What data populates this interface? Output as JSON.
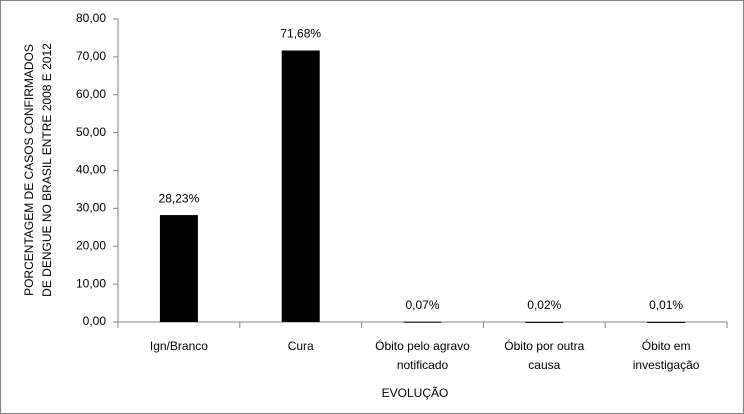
{
  "chart_data": {
    "type": "bar",
    "categories": [
      "Ign/Branco",
      "Cura",
      "Óbito pelo agravo notificado",
      "Óbito por outra causa",
      "Óbito em investigação"
    ],
    "values": [
      28.23,
      71.68,
      0.07,
      0.02,
      0.01
    ],
    "value_labels": [
      "28,23%",
      "71,68%",
      "0,07%",
      "0,02%",
      "0,01%"
    ],
    "color": "#000000",
    "ylim": [
      0,
      80
    ],
    "yticks": [
      {
        "value": 0,
        "label": "0,00"
      },
      {
        "value": 10,
        "label": "10,00"
      },
      {
        "value": 20,
        "label": "20,00"
      },
      {
        "value": 30,
        "label": "30,00"
      },
      {
        "value": 40,
        "label": "40,00"
      },
      {
        "value": 50,
        "label": "50,00"
      },
      {
        "value": 60,
        "label": "60,00"
      },
      {
        "value": 70,
        "label": "70,00"
      },
      {
        "value": 80,
        "label": "80,00"
      }
    ],
    "xlabel": "EVOLUÇÃO",
    "ylabel": [
      "PORCENTAGEM DE CASOS CONFIRMADOS",
      "DE DENGUE NO BRASIL ENTRE 2008 E 2012"
    ],
    "grid": false
  }
}
